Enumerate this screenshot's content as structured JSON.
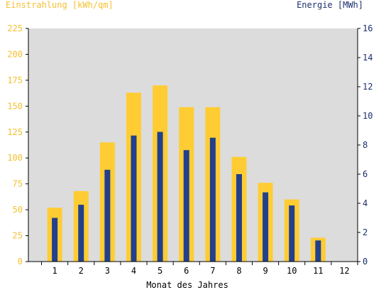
{
  "chart_data": {
    "type": "bar",
    "categories": [
      "1",
      "2",
      "3",
      "4",
      "5",
      "6",
      "7",
      "8",
      "9",
      "10",
      "11",
      "12"
    ],
    "xlabel": "Monat des Jahres",
    "series": [
      {
        "name": "Einstrahlung [kWh/qm]",
        "axis": "left",
        "values": [
          52,
          68,
          115,
          163,
          170,
          149,
          149,
          101,
          76,
          60,
          23,
          0
        ]
      },
      {
        "name": "Energie [MWh]",
        "axis": "right",
        "values": [
          3.0,
          3.9,
          6.3,
          8.65,
          8.9,
          7.65,
          8.5,
          6.0,
          4.75,
          3.85,
          1.45,
          0
        ]
      }
    ],
    "y_left": {
      "label": "Einstrahlung [kWh/qm]",
      "min": 0,
      "max": 225,
      "ticks": [
        "0",
        "25",
        "50",
        "75",
        "100",
        "125",
        "150",
        "175",
        "200",
        "225"
      ]
    },
    "y_right": {
      "label": "Energie [MWh]",
      "min": 0,
      "max": 16,
      "ticks": [
        "0",
        "2",
        "4",
        "6",
        "8",
        "10",
        "12",
        "14",
        "16"
      ]
    },
    "colors": {
      "irradiation": "#ffcc33",
      "energy": "#22408c",
      "plot_bg": "#dcdcdc",
      "left_text": "#f5c030",
      "right_text": "#1b2f6e"
    },
    "grid": false,
    "legend": "none"
  }
}
